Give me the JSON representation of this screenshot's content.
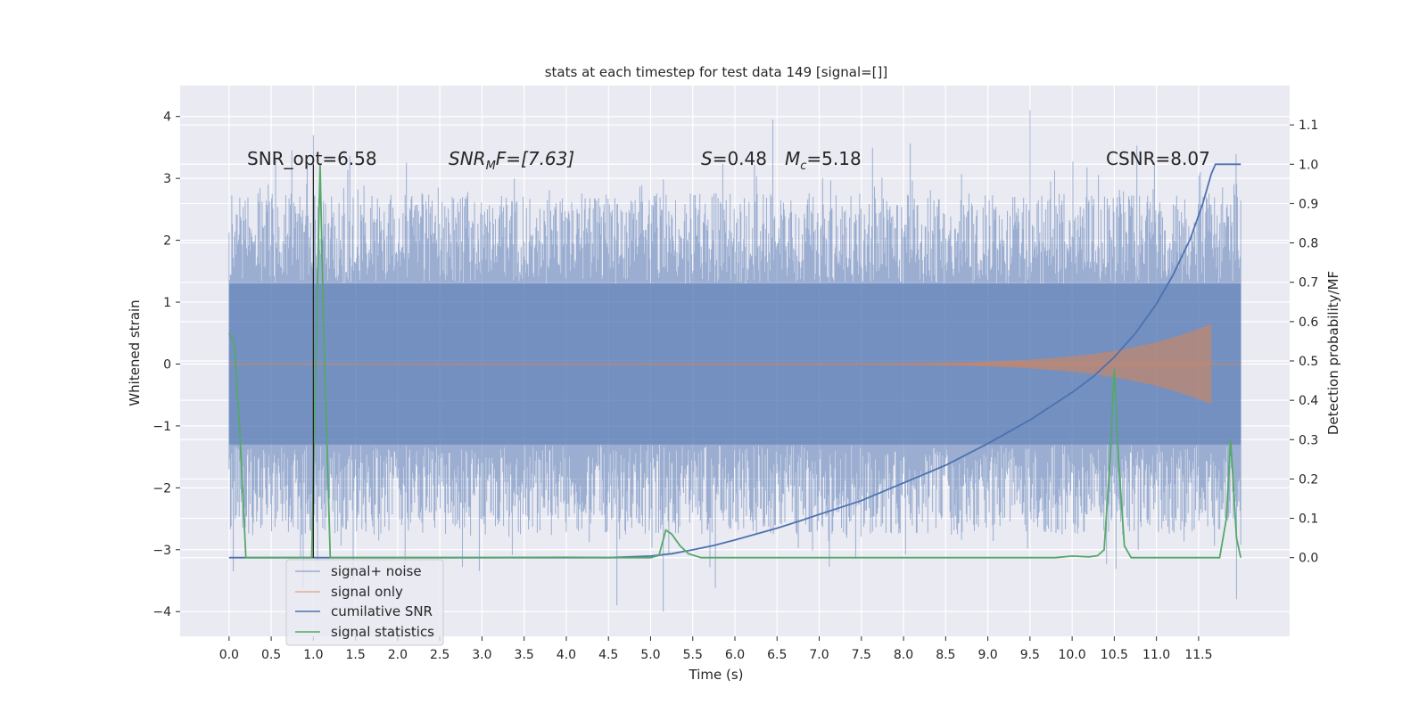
{
  "chart_data": {
    "type": "line",
    "title": "stats at each timestep for test data 149 [signal=[]]",
    "xlabel": "Time (s)",
    "ylabel_left": "Whitened strain",
    "ylabel_right": "Detection probability/MF",
    "xlim": [
      -0.58,
      12.58
    ],
    "ylim_left": [
      -4.4,
      4.5
    ],
    "ylim_right": [
      -0.2,
      1.2
    ],
    "x_ticks": [
      0.0,
      0.5,
      1.0,
      1.5,
      2.0,
      2.5,
      3.0,
      3.5,
      4.0,
      4.5,
      5.0,
      5.5,
      6.0,
      6.5,
      7.0,
      7.5,
      8.0,
      8.5,
      9.0,
      9.5,
      10.0,
      10.5,
      11.0,
      11.5
    ],
    "x_tick_labels": [
      "0.0",
      "0.5",
      "1.0",
      "1.5",
      "2.0",
      "2.5",
      "3.0",
      "3.5",
      "4.0",
      "4.5",
      "5.0",
      "5.5",
      "6.0",
      "6.5",
      "7.0",
      "7.5",
      "8.0",
      "8.5",
      "9.0",
      "9.5",
      "10.0",
      "10.5",
      "11.0",
      "11.5"
    ],
    "y_left_ticks": [
      4,
      3,
      2,
      1,
      0,
      -1,
      -2,
      -3,
      -4
    ],
    "y_left_tick_labels": [
      "4",
      "3",
      "2",
      "1",
      "0",
      "−1",
      "−2",
      "−3",
      "−4"
    ],
    "y_right_ticks": [
      1.1,
      1.0,
      0.9,
      0.8,
      0.7,
      0.6,
      0.5,
      0.4,
      0.3,
      0.2,
      0.1,
      0.0
    ],
    "y_right_tick_labels": [
      "1.1",
      "1.0",
      "0.9",
      "0.8",
      "0.7",
      "0.6",
      "0.5",
      "0.4",
      "0.3",
      "0.2",
      "0.1",
      "0.0"
    ],
    "grid": true,
    "legend_position": "lower-left",
    "annotations": {
      "snr_opt": "SNR_opt=6.58",
      "snr_mf_sym": "SNR",
      "snr_mf_sub": "M",
      "snr_mf_rest": "F=[7.63]",
      "s_sym": "S",
      "s_rest": "=0.48",
      "mc_sym": "M",
      "mc_sub": "c",
      "mc_rest": "=5.18",
      "csnr": "CSNR=8.07"
    },
    "series": [
      {
        "name": "signal+ noise",
        "axis": "left",
        "color": "#4c72b0",
        "description_values": {
          "t_range": [
            0.0,
            12.0
          ],
          "envelope_abs_typical": 2.3,
          "peaks": [
            [
              0.0,
              -1.7
            ],
            [
              0.05,
              -3.35
            ],
            [
              1.0,
              3.7
            ],
            [
              1.05,
              -3.2
            ],
            [
              4.6,
              -3.9
            ],
            [
              5.15,
              -4.0
            ],
            [
              6.45,
              3.95
            ],
            [
              9.5,
              4.1
            ],
            [
              11.95,
              -3.8
            ]
          ]
        }
      },
      {
        "name": "signal only",
        "axis": "left",
        "color": "#dd8452",
        "chirp": {
          "t_start": 5.0,
          "t_merge": 11.65,
          "amp_start": 0.01,
          "amp_end": 0.65
        }
      },
      {
        "name": "cumilative SNR",
        "axis": "right",
        "color": "#4c72b0",
        "x": [
          0.0,
          1.0,
          2.0,
          3.0,
          4.0,
          4.5,
          5.0,
          5.25,
          5.5,
          5.75,
          6.0,
          6.25,
          6.5,
          6.75,
          7.0,
          7.5,
          8.0,
          8.5,
          9.0,
          9.5,
          10.0,
          10.25,
          10.5,
          10.75,
          11.0,
          11.2,
          11.4,
          11.55,
          11.65,
          11.7,
          12.0
        ],
        "values": [
          0.0,
          0.0,
          0.0,
          0.0,
          0.0,
          0.0,
          0.004,
          0.01,
          0.02,
          0.031,
          0.045,
          0.06,
          0.075,
          0.092,
          0.11,
          0.145,
          0.19,
          0.235,
          0.29,
          0.35,
          0.42,
          0.46,
          0.51,
          0.57,
          0.645,
          0.72,
          0.81,
          0.9,
          0.975,
          1.0,
          1.0
        ]
      },
      {
        "name": "signal statistics",
        "axis": "right",
        "color": "#55a868",
        "x": [
          0.0,
          0.06,
          0.12,
          0.2,
          0.35,
          0.6,
          0.9,
          0.98,
          1.04,
          1.08,
          1.12,
          1.2,
          1.5,
          2.0,
          3.0,
          4.0,
          4.5,
          5.0,
          5.1,
          5.18,
          5.25,
          5.35,
          5.45,
          5.6,
          6.0,
          7.0,
          8.0,
          9.0,
          9.8,
          10.0,
          10.2,
          10.3,
          10.38,
          10.45,
          10.5,
          10.55,
          10.62,
          10.7,
          10.8,
          11.0,
          11.5,
          11.75,
          11.83,
          11.88,
          11.95,
          12.0
        ],
        "values": [
          0.57,
          0.55,
          0.35,
          0.0,
          0.0,
          0.0,
          0.0,
          0.0,
          0.6,
          1.0,
          0.6,
          0.0,
          0.0,
          0.0,
          0.0,
          0.001,
          0.0,
          0.0,
          0.006,
          0.07,
          0.06,
          0.03,
          0.01,
          0.0,
          0.0,
          0.0,
          0.0,
          0.0,
          0.0,
          0.004,
          0.002,
          0.005,
          0.02,
          0.25,
          0.48,
          0.25,
          0.03,
          0.0,
          0.0,
          0.0,
          0.0,
          0.0,
          0.1,
          0.3,
          0.05,
          0.0
        ]
      }
    ]
  }
}
